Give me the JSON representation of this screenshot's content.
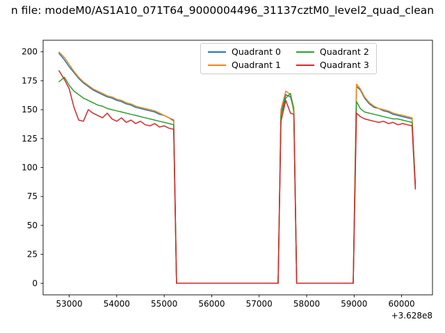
{
  "chart_data": {
    "type": "line",
    "title": "n file: modeM0/AS1A10_071T64_9000004496_31137cztM0_level2_quad_clean",
    "xlabel": "",
    "ylabel": "",
    "x_offset_label": "+3.628e8",
    "xlim": [
      52450,
      60650
    ],
    "ylim": [
      -10,
      210
    ],
    "xticks": [
      53000,
      54000,
      55000,
      56000,
      57000,
      58000,
      59000,
      60000
    ],
    "yticks": [
      0,
      25,
      50,
      75,
      100,
      125,
      150,
      175,
      200
    ],
    "grid": false,
    "legend": {
      "ncol": 2,
      "location": "upper center",
      "frame": true
    },
    "x": [
      52780,
      52900,
      53000,
      53100,
      53200,
      53300,
      53400,
      53500,
      53600,
      53700,
      53800,
      53900,
      54000,
      54100,
      54200,
      54300,
      54400,
      54500,
      54600,
      54700,
      54800,
      54900,
      55000,
      55100,
      55200,
      55260,
      55600,
      57000,
      57400,
      57460,
      57560,
      57660,
      57730,
      57790,
      58200,
      58900,
      58980,
      59050,
      59130,
      59220,
      59320,
      59420,
      59520,
      59620,
      59720,
      59820,
      59920,
      60020,
      60120,
      60220,
      60290
    ],
    "series": [
      {
        "name": "Quadrant 0",
        "color": "#1f77b4",
        "values": [
          199,
          193,
          187,
          182,
          177,
          173,
          170,
          167,
          165,
          163,
          161,
          160,
          158,
          157,
          155,
          154,
          152,
          151,
          150,
          149,
          148,
          146,
          145,
          143,
          141,
          0,
          0,
          0,
          0,
          148,
          163,
          161,
          150,
          0,
          0,
          0,
          0,
          170,
          167,
          160,
          155,
          152,
          151,
          149,
          148,
          146,
          145,
          144,
          143,
          142,
          83
        ]
      },
      {
        "name": "Quadrant 1",
        "color": "#ff7f0e",
        "values": [
          200,
          195,
          189,
          183,
          178,
          174,
          171,
          168,
          166,
          164,
          162,
          161,
          159,
          158,
          156,
          155,
          153,
          152,
          151,
          150,
          149,
          147,
          145,
          143,
          140,
          0,
          0,
          0,
          0,
          150,
          166,
          163,
          152,
          0,
          0,
          0,
          0,
          172,
          168,
          161,
          156,
          153,
          151,
          150,
          149,
          147,
          146,
          145,
          144,
          143,
          84
        ]
      },
      {
        "name": "Quadrant 2",
        "color": "#2ca02c",
        "values": [
          174,
          178,
          171,
          166,
          163,
          160,
          158,
          156,
          154,
          153,
          151,
          150,
          149,
          148,
          147,
          146,
          145,
          144,
          143,
          142,
          141,
          140,
          139,
          138,
          137,
          0,
          0,
          0,
          0,
          145,
          160,
          164,
          148,
          0,
          0,
          0,
          0,
          157,
          151,
          148,
          147,
          146,
          145,
          144,
          143,
          142,
          142,
          141,
          140,
          139,
          85
        ]
      },
      {
        "name": "Quadrant 3",
        "color": "#d62728",
        "values": [
          184,
          176,
          168,
          152,
          141,
          140,
          150,
          147,
          145,
          143,
          147,
          142,
          140,
          143,
          139,
          141,
          138,
          140,
          137,
          136,
          138,
          135,
          136,
          134,
          133,
          0,
          0,
          0,
          0,
          140,
          158,
          147,
          146,
          0,
          0,
          0,
          0,
          147,
          144,
          142,
          141,
          140,
          139,
          140,
          138,
          139,
          137,
          138,
          137,
          136,
          81
        ]
      }
    ]
  }
}
